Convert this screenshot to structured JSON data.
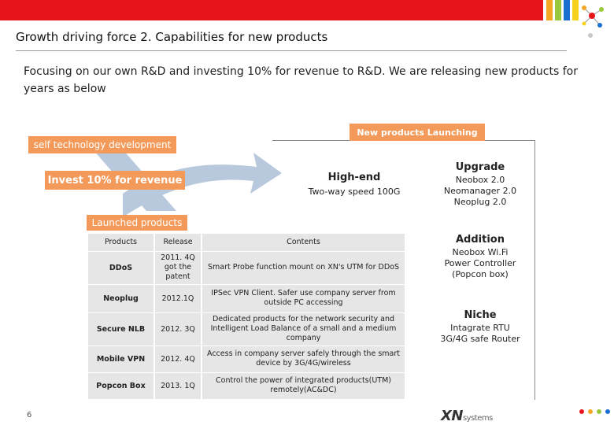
{
  "header": {
    "title": "Growth driving force 2. Capabilities for new products",
    "stripe_colors": [
      "#f5a623",
      "#9ac83c",
      "#1b6fd1",
      "#f7d21b"
    ]
  },
  "intro": "Focusing on our own R&D and investing 10% for revenue to R&D. We are releasing new products for years as below",
  "diagram": {
    "self_dev": "self technology development",
    "invest": "Invest 10% for revenue",
    "launched": "Launched products",
    "new_launching": "New products Launching",
    "highend": {
      "title": "High-end",
      "sub": "Two-way speed 100G"
    },
    "upgrade": {
      "title": "Upgrade",
      "lines": [
        "Neobox 2.0",
        "Neomanager 2.0",
        "Neoplug 2.0"
      ]
    },
    "addition": {
      "title": "Addition",
      "lines": [
        "Neobox Wi.Fi",
        "Power Controller",
        "(Popcon box)"
      ]
    },
    "niche": {
      "title": "Niche",
      "lines": [
        "Intagrate RTU",
        "3G/4G safe Router"
      ]
    }
  },
  "table": {
    "headers": [
      "Products",
      "Release",
      "Contents"
    ],
    "rows": [
      {
        "product": "DDoS",
        "release": "2011. 4Q got the patent",
        "contents": "Smart Probe function mount on XN's UTM for DDoS"
      },
      {
        "product": "Neoplug",
        "release": "2012.1Q",
        "contents": "IPSec VPN Client. Safer use company server from outside PC accessing"
      },
      {
        "product": "Secure NLB",
        "release": "2012. 3Q",
        "contents": "Dedicated products for the network security and Intelligent Load Balance of a small and a medium company"
      },
      {
        "product": "Mobile VPN",
        "release": "2012. 4Q",
        "contents": "Access in company server safely through the smart device by 3G/4G/wireless"
      },
      {
        "product": "Popcon Box",
        "release": "2013. 1Q",
        "contents": "Control the power of integrated products(UTM) remotely(AC&DC)"
      }
    ]
  },
  "footer": {
    "page_number": "6",
    "logo_text": "XN",
    "logo_sub": "systems",
    "dot_colors": [
      "#e8141b",
      "#f5a623",
      "#9ac83c",
      "#1b6fd1",
      "#f7d21b"
    ]
  }
}
